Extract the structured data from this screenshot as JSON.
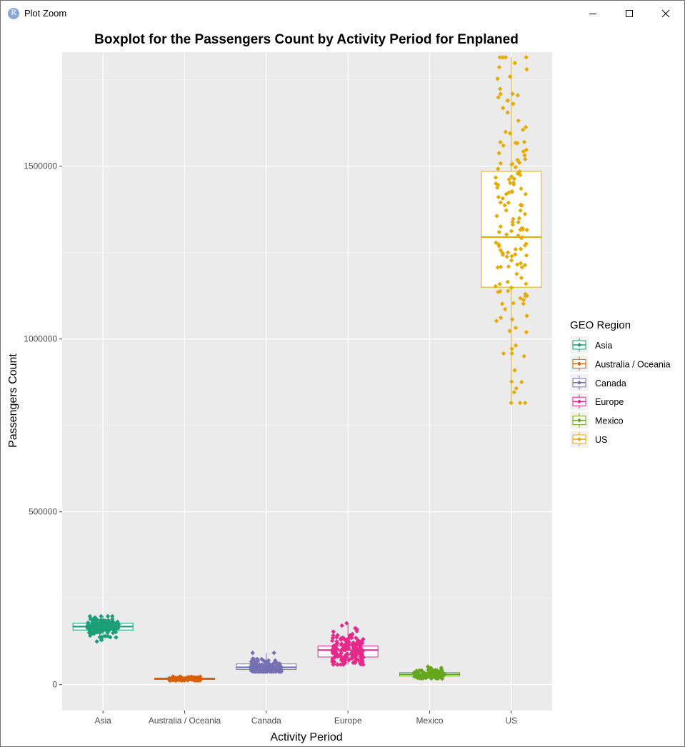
{
  "window": {
    "title": "Plot Zoom",
    "icon_letter": "R",
    "app_icon": "r-logo-icon",
    "buttons": [
      {
        "name": "minimize-button",
        "icon": "minimize-icon"
      },
      {
        "name": "maximize-button",
        "icon": "maximize-icon"
      },
      {
        "name": "close-button",
        "icon": "close-icon"
      }
    ]
  },
  "chart_data": {
    "type": "boxplot",
    "title": "Boxplot for the Passengers Count by Activity Period for Enplaned",
    "xlabel": "Activity Period",
    "ylabel": "Passengers Count",
    "ylim": [
      -75000,
      1830000
    ],
    "yticks": [
      0,
      500000,
      1000000,
      1500000
    ],
    "ytick_labels": [
      "0",
      "500000",
      "1000000",
      "1500000"
    ],
    "grid": true,
    "panel_background": "#ebebeb",
    "legend": {
      "title": "GEO Region",
      "placement": "right",
      "entries": [
        "Asia",
        "Australia / Oceania",
        "Canada",
        "Europe",
        "Mexico",
        "US"
      ]
    },
    "categories": [
      "Asia",
      "Australia / Oceania",
      "Canada",
      "Europe",
      "Mexico",
      "US"
    ],
    "series": [
      {
        "name": "Asia",
        "color": "#1b9e77",
        "min": 125000,
        "q1": 158000,
        "median": 168000,
        "q3": 178000,
        "max": 198000,
        "points": 150
      },
      {
        "name": "Australia / Oceania",
        "color": "#d95f02",
        "min": 12000,
        "q1": 15000,
        "median": 17000,
        "q3": 19000,
        "max": 23000,
        "points": 110
      },
      {
        "name": "Canada",
        "color": "#7570b3",
        "min": 38000,
        "q1": 44000,
        "median": 50000,
        "q3": 60000,
        "max": 92000,
        "points": 150
      },
      {
        "name": "Europe",
        "color": "#e7298a",
        "min": 58000,
        "q1": 80000,
        "median": 100000,
        "q3": 112000,
        "max": 178000,
        "points": 170
      },
      {
        "name": "Mexico",
        "color": "#66a61e",
        "min": 18000,
        "q1": 25000,
        "median": 30000,
        "q3": 35000,
        "max": 52000,
        "points": 110
      },
      {
        "name": "US",
        "color": "#e6ab02",
        "min": 815000,
        "q1": 1150000,
        "median": 1295000,
        "q3": 1485000,
        "max": 1815000,
        "points": 150
      }
    ]
  }
}
